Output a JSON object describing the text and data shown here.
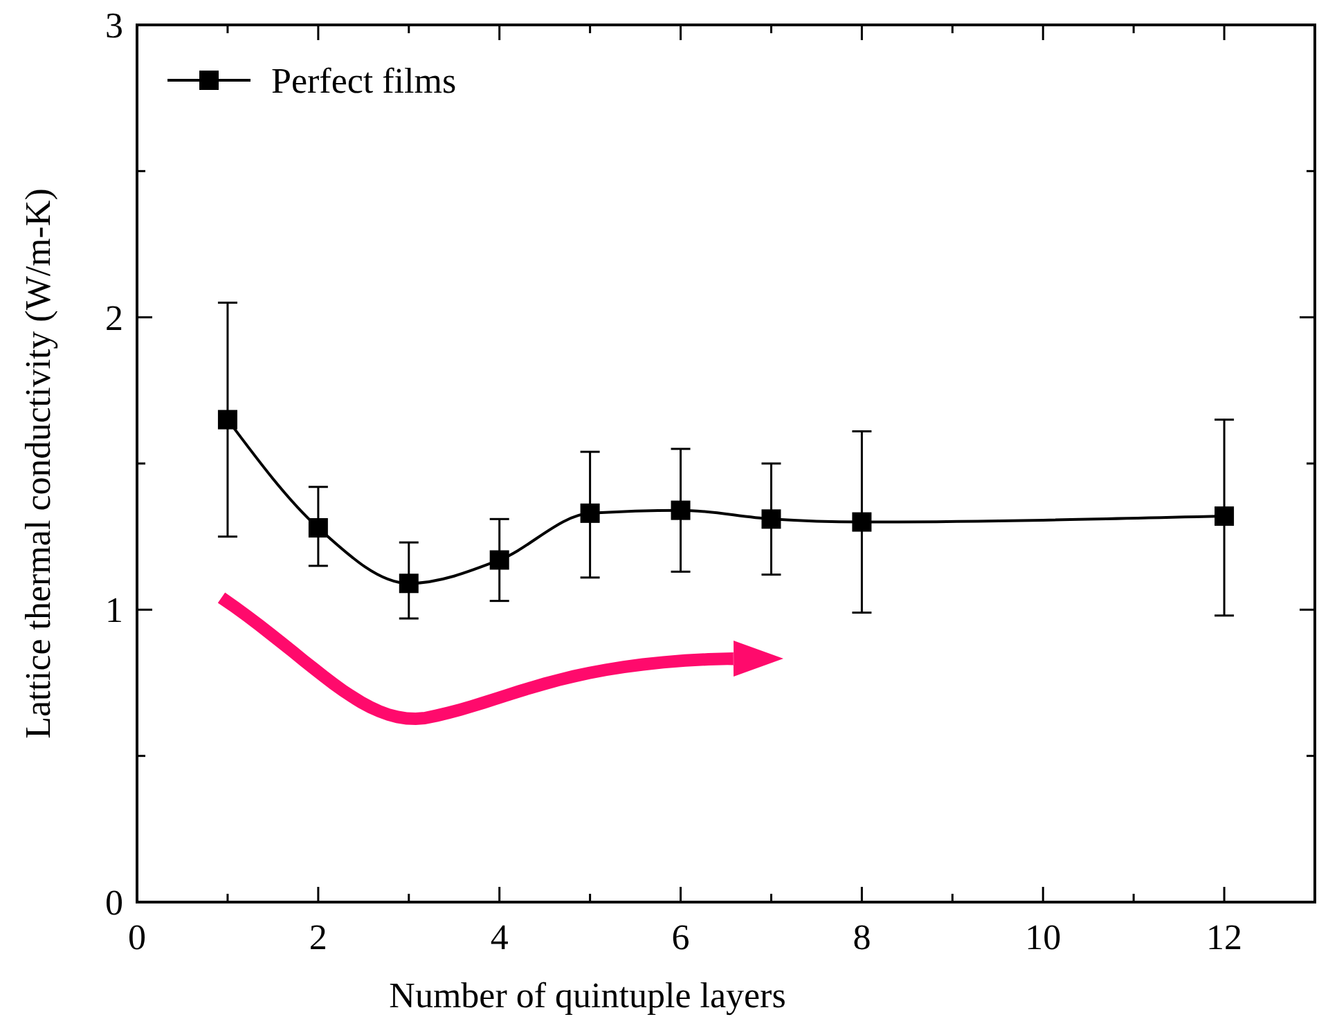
{
  "chart_data": {
    "type": "line",
    "xlabel": "Number of quintuple layers",
    "ylabel": "Lattice thermal conductivity (W/m-K)",
    "x": [
      1,
      2,
      3,
      4,
      5,
      6,
      7,
      8,
      12
    ],
    "series": [
      {
        "name": "Perfect films",
        "color": "#000000",
        "values": [
          1.65,
          1.28,
          1.09,
          1.17,
          1.33,
          1.34,
          1.31,
          1.3,
          1.32
        ],
        "errors": [
          [
            1.25,
            2.05
          ],
          [
            1.15,
            1.42
          ],
          [
            0.97,
            1.23
          ],
          [
            1.03,
            1.31
          ],
          [
            1.11,
            1.54
          ],
          [
            1.13,
            1.55
          ],
          [
            1.12,
            1.5
          ],
          [
            0.99,
            1.61
          ],
          [
            0.98,
            1.65
          ]
        ]
      }
    ],
    "xlim": [
      0,
      13
    ],
    "xticks": [
      0,
      {
        "value": 1,
        "label": null
      },
      2,
      {
        "value": 3,
        "label": null
      },
      4,
      {
        "value": 5,
        "label": null
      },
      6,
      {
        "value": 7,
        "label": null
      },
      8,
      {
        "value": 9,
        "label": null
      },
      10,
      {
        "value": 11,
        "label": null
      },
      12
    ],
    "ylim": [
      0,
      3
    ],
    "yticks": [
      0,
      {
        "value": 0.5,
        "label": null
      },
      1,
      {
        "value": 1.5,
        "label": null
      },
      2,
      {
        "value": 2.5,
        "label": null
      },
      3
    ],
    "marker": "square",
    "line_style": "solid",
    "legend": "top left",
    "grid": false
  }
}
